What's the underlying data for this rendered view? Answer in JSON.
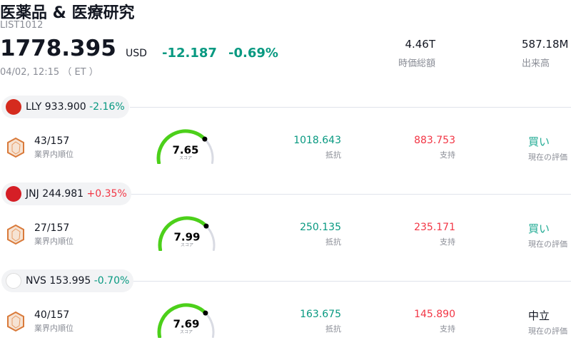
{
  "header": {
    "title": "医薬品 & 医療研究",
    "symbol": "LIST1012",
    "price": "1778.395",
    "currency": "USD",
    "change": "-12.187",
    "change_percent": "-0.69%",
    "timestamp": "04/02, 12:15 （ ET ）"
  },
  "stats": [
    {
      "value": "4.46T",
      "label": "時価総額"
    },
    {
      "value": "587.18M",
      "label": "出来高"
    }
  ],
  "stocks": [
    {
      "ticker": "LLY",
      "price": "933.900",
      "change_percent": "-2.16%",
      "rank": "43/157",
      "rank_label": "業界内順位",
      "score": "7.65",
      "score_label": "スコア",
      "resistance": "1018.643",
      "resistance_label": "抵抗",
      "support": "883.753",
      "support_label": "支持",
      "rating": "買い",
      "rating_label": "現在の評価"
    },
    {
      "ticker": "JNJ",
      "price": "244.981",
      "change_percent": "+0.35%",
      "rank": "27/157",
      "rank_label": "業界内順位",
      "score": "7.99",
      "score_label": "スコア",
      "resistance": "250.135",
      "resistance_label": "抵抗",
      "support": "235.171",
      "support_label": "支持",
      "rating": "買い",
      "rating_label": "現在の評価"
    },
    {
      "ticker": "NVS",
      "price": "153.995",
      "change_percent": "-0.70%",
      "rank": "40/157",
      "rank_label": "業界内順位",
      "score": "7.69",
      "score_label": "スコア",
      "resistance": "163.675",
      "resistance_label": "抵抗",
      "support": "145.890",
      "support_label": "支持",
      "rating": "中立",
      "rating_label": "現在の評価"
    }
  ]
}
